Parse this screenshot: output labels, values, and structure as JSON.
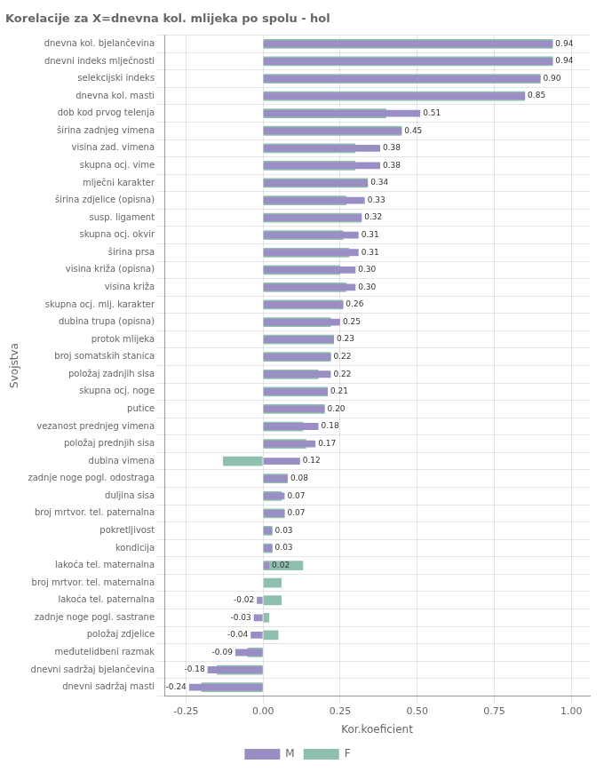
{
  "chart_data": {
    "type": "bar",
    "orientation": "horizontal",
    "title": "Korelacije za X=dnevna kol. mlijeka po spolu - hol",
    "xlabel": "Kor.koeficient",
    "ylabel": "Svojstva",
    "categories": [
      "dnevna kol. bjelančevina",
      "dnevni indeks mlječnosti",
      "selekcijski indeks",
      "dnevna kol. masti",
      "dob kod prvog telenja",
      "širina zadnjeg vimena",
      "visina zad. vimena",
      "skupna ocj. vime",
      "mlječni karakter",
      "širina zdjelice (opisna)",
      "susp. ligament",
      "skupna ocj. okvir",
      "širina prsa",
      "visina križa (opisna)",
      "visina križa",
      "skupna ocj. mlj. karakter",
      "dubina trupa (opisna)",
      "protok mlijeka",
      "broj somatskih stanica",
      "položaj zadnjih sisa",
      "skupna ocj. noge",
      "putice",
      "vezanost prednjeg vimena",
      "položaj prednjih sisa",
      "dubina vimena",
      "zadnje noge pogl. odostraga",
      "duljina sisa",
      "broj mrtvor. tel. paternalna",
      "pokretljivost",
      "kondicija",
      "lakoća tel. maternalna",
      "broj mrtvor. tel. maternalna",
      "lakoća tel. paternalna",
      "zadnje noge pogl. sastrane",
      "položaj zdjelice",
      "međutelidbeni razmak",
      "dnevni sadržaj bjelančevina",
      "dnevni sadržaj masti"
    ],
    "series": [
      {
        "name": "M",
        "color": "#9b8ec4",
        "values": [
          0.94,
          0.94,
          0.9,
          0.85,
          0.51,
          0.45,
          0.38,
          0.38,
          0.34,
          0.33,
          0.32,
          0.31,
          0.31,
          0.3,
          0.3,
          0.26,
          0.25,
          0.23,
          0.22,
          0.22,
          0.21,
          0.2,
          0.18,
          0.17,
          0.12,
          0.08,
          0.07,
          0.07,
          0.03,
          0.03,
          0.02,
          0.0,
          -0.02,
          -0.03,
          -0.04,
          -0.09,
          -0.18,
          -0.24
        ],
        "value_labels": [
          "0.94",
          "0.94",
          "0.90",
          "0.85",
          "0.51",
          "0.45",
          "0.38",
          "0.38",
          "0.34",
          "0.33",
          "0.32",
          "0.31",
          "0.31",
          "0.30",
          "0.30",
          "0.26",
          "0.25",
          "0.23",
          "0.22",
          "0.22",
          "0.21",
          "0.20",
          "0.18",
          "0.17",
          "0.12",
          "0.08",
          "0.07",
          "0.07",
          "0.03",
          "0.03",
          "0.02",
          null,
          "-0.02",
          "-0.03",
          "-0.04",
          "-0.09",
          "-0.18",
          "-0.24"
        ]
      },
      {
        "name": "F",
        "color": "#8fbfad",
        "values": [
          0.94,
          0.94,
          0.9,
          0.85,
          0.4,
          0.45,
          0.3,
          0.3,
          0.34,
          0.27,
          0.32,
          0.26,
          0.28,
          0.25,
          0.27,
          0.26,
          0.22,
          0.23,
          0.22,
          0.18,
          0.21,
          0.2,
          0.13,
          0.14,
          -0.13,
          0.08,
          0.06,
          0.07,
          0.03,
          0.03,
          0.13,
          0.06,
          0.06,
          0.02,
          0.05,
          -0.05,
          -0.15,
          -0.2
        ]
      }
    ],
    "data_labels": true,
    "xlim": [
      -0.32,
      1.06
    ],
    "xticks": [
      -0.25,
      {
        "value": 0,
        "label": "0.00"
      },
      0.25,
      {
        "value": 0.5,
        "label": "0.50"
      },
      0.75,
      {
        "value": 1,
        "label": "1.00"
      }
    ],
    "grid": true,
    "legend": "bottom"
  }
}
